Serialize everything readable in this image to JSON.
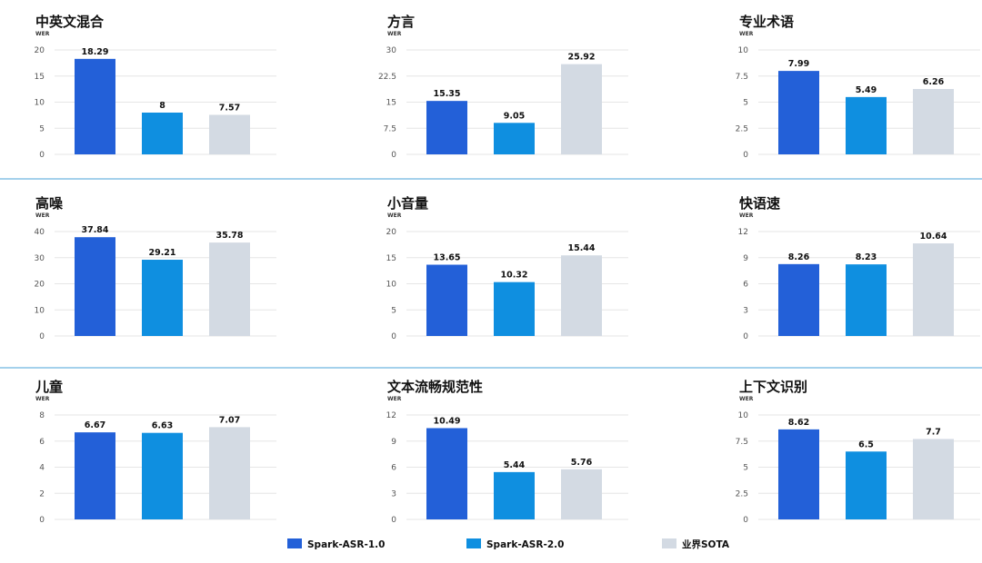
{
  "legend": [
    {
      "name": "Spark-ASR-1.0",
      "color": "#2360d8"
    },
    {
      "name": "Spark-ASR-2.0",
      "color": "#0f8fe0"
    },
    {
      "name": "业界SOTA",
      "color": "#d3dae3"
    }
  ],
  "chart_data": [
    {
      "type": "bar",
      "title": "中英文混合",
      "ylabel": "WER",
      "ylim": [
        0,
        20
      ],
      "yticks": [
        "0",
        "5",
        "10",
        "15",
        "20"
      ],
      "values": [
        18.29,
        8,
        7.57
      ],
      "value_labels": [
        "18.29",
        "8",
        "7.57"
      ]
    },
    {
      "type": "bar",
      "title": "方言",
      "ylabel": "WER",
      "ylim": [
        0,
        30
      ],
      "yticks": [
        "0",
        "7.5",
        "15",
        "22.5",
        "30"
      ],
      "values": [
        15.35,
        9.05,
        25.92
      ],
      "value_labels": [
        "15.35",
        "9.05",
        "25.92"
      ]
    },
    {
      "type": "bar",
      "title": "专业术语",
      "ylabel": "WER",
      "ylim": [
        0,
        10
      ],
      "yticks": [
        "0",
        "2.5",
        "5",
        "7.5",
        "10"
      ],
      "values": [
        7.99,
        5.49,
        6.26
      ],
      "value_labels": [
        "7.99",
        "5.49",
        "6.26"
      ]
    },
    {
      "type": "bar",
      "title": "高噪",
      "ylabel": "WER",
      "ylim": [
        0,
        40
      ],
      "yticks": [
        "0",
        "10",
        "20",
        "30",
        "40"
      ],
      "values": [
        37.84,
        29.21,
        35.78
      ],
      "value_labels": [
        "37.84",
        "29.21",
        "35.78"
      ]
    },
    {
      "type": "bar",
      "title": "小音量",
      "ylabel": "WER",
      "ylim": [
        0,
        20
      ],
      "yticks": [
        "0",
        "5",
        "10",
        "15",
        "20"
      ],
      "values": [
        13.65,
        10.32,
        15.44
      ],
      "value_labels": [
        "13.65",
        "10.32",
        "15.44"
      ]
    },
    {
      "type": "bar",
      "title": "快语速",
      "ylabel": "WER",
      "ylim": [
        0,
        12
      ],
      "yticks": [
        "0",
        "3",
        "6",
        "9",
        "12"
      ],
      "values": [
        8.26,
        8.23,
        10.64
      ],
      "value_labels": [
        "8.26",
        "8.23",
        "10.64"
      ]
    },
    {
      "type": "bar",
      "title": "儿童",
      "ylabel": "WER",
      "ylim": [
        0,
        8
      ],
      "yticks": [
        "0",
        "2",
        "4",
        "6",
        "8"
      ],
      "values": [
        6.67,
        6.63,
        7.07
      ],
      "value_labels": [
        "6.67",
        "6.63",
        "7.07"
      ]
    },
    {
      "type": "bar",
      "title": "文本流畅规范性",
      "ylabel": "WER",
      "ylim": [
        0,
        12
      ],
      "yticks": [
        "0",
        "3",
        "6",
        "9",
        "12"
      ],
      "values": [
        10.49,
        5.44,
        5.76
      ],
      "value_labels": [
        "10.49",
        "5.44",
        "5.76"
      ]
    },
    {
      "type": "bar",
      "title": "上下文识别",
      "ylabel": "WER",
      "ylim": [
        0,
        10
      ],
      "yticks": [
        "0",
        "2.5",
        "5",
        "7.5",
        "10"
      ],
      "values": [
        8.62,
        6.5,
        7.7
      ],
      "value_labels": [
        "8.62",
        "6.5",
        "7.7"
      ]
    }
  ]
}
